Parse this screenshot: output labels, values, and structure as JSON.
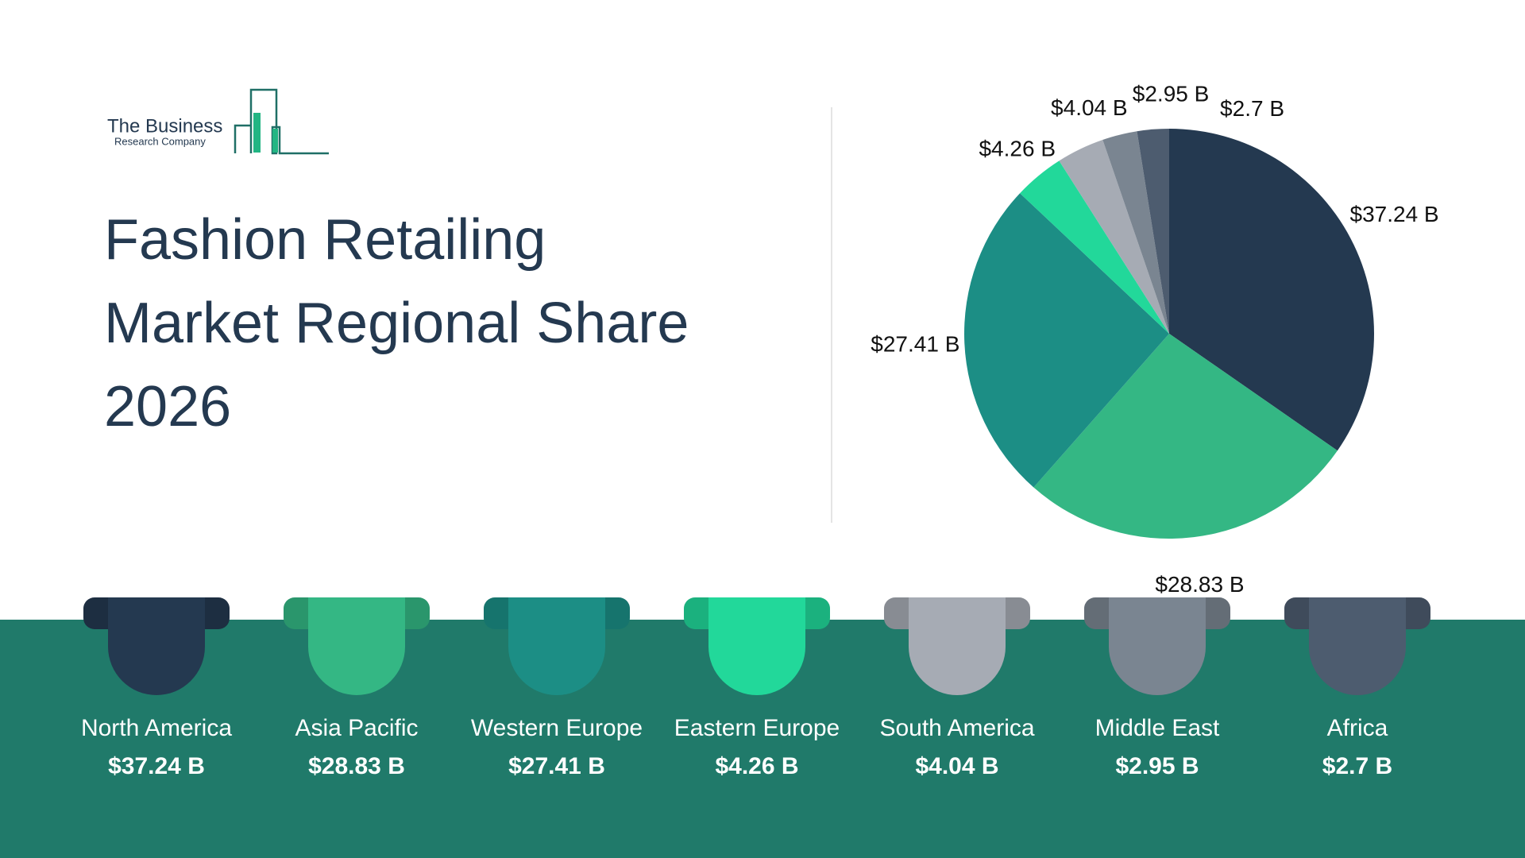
{
  "logo": {
    "name": "The Business",
    "subtitle": "Research Company"
  },
  "chart_data": {
    "type": "pie",
    "title": "Fashion Retailing Market Regional Share 2026",
    "categories": [
      "North America",
      "Asia Pacific",
      "Western Europe",
      "Eastern Europe",
      "South America",
      "Middle East",
      "Africa"
    ],
    "values": [
      37.24,
      28.83,
      27.41,
      4.26,
      4.04,
      2.95,
      2.7
    ],
    "value_labels": [
      "$37.24 B",
      "$28.83 B",
      "$27.41 B",
      "$4.26 B",
      "$4.04 B",
      "$2.95 B",
      "$2.7 B"
    ],
    "colors": [
      "#243950",
      "#34b784",
      "#1c8e85",
      "#22d89a",
      "#a6abb4",
      "#7a8591",
      "#4d5c6f"
    ]
  }
}
